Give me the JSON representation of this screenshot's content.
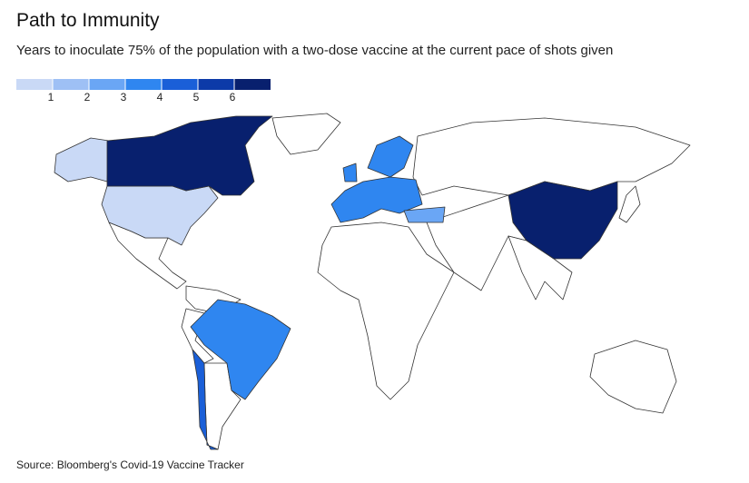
{
  "title": "Path to Immunity",
  "subtitle": "Years to inoculate 75% of the population with a two-dose vaccine at the current pace of shots given",
  "legend": {
    "colors": [
      "#c9d9f6",
      "#9ec0f5",
      "#6aa6f5",
      "#2f86f0",
      "#1a5fd8",
      "#0c3aa8",
      "#08206e"
    ],
    "ticks": [
      1,
      2,
      3,
      4,
      5,
      6
    ]
  },
  "regions": [
    0.8,
    0.8,
    6.5,
    3.5,
    4.5,
    3.5,
    3.5,
    3.5,
    2.5,
    6.5
  ],
  "source": "Source: Bloomberg's Covid-19 Vaccine Tracker"
}
